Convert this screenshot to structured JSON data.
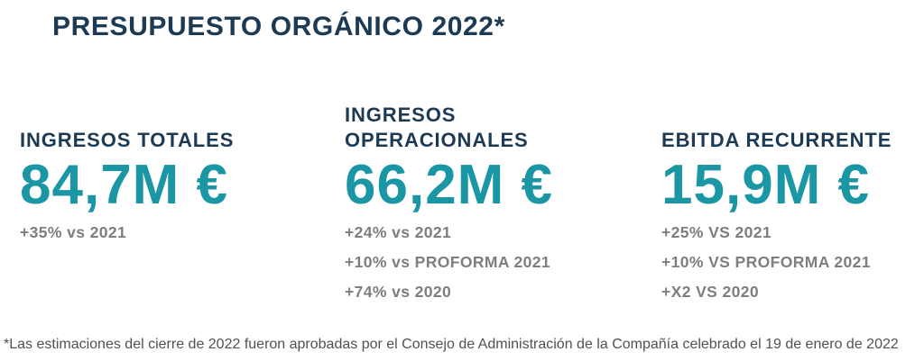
{
  "page": {
    "title": "PRESUPUESTO ORGÁNICO 2022*",
    "footnote": "*Las estimaciones del cierre de 2022 fueron aprobadas por el Consejo de Administración de la Compañía celebrado el 19 de enero de 2022"
  },
  "colors": {
    "navy": "#1d3a55",
    "teal": "#1b96a5",
    "gray": "#7d7e80",
    "footnote_gray": "#515154",
    "bg": "#ffffff"
  },
  "metrics": [
    {
      "label": "INGRESOS TOTALES",
      "value": "84,7M €",
      "deltas": [
        "+35% vs 2021"
      ]
    },
    {
      "label": "INGRESOS OPERACIONALES",
      "value": "66,2M €",
      "deltas": [
        "+24% vs 2021",
        "+10% vs PROFORMA 2021",
        "+74% vs 2020"
      ]
    },
    {
      "label": "EBITDA RECURRENTE",
      "value": "15,9M €",
      "deltas": [
        "+25% VS 2021",
        "+10% VS PROFORMA 2021",
        "+X2 VS 2020"
      ]
    }
  ]
}
